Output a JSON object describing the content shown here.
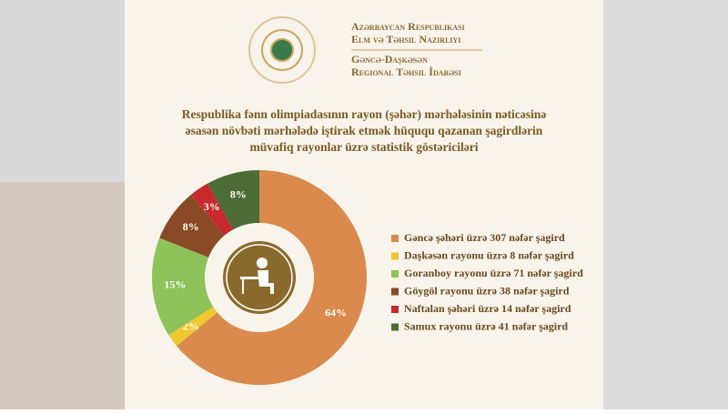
{
  "header": {
    "ministry_line1": "Azərbaycan Respublikası",
    "ministry_line2": "Elm və Təhsil Nazirliyi",
    "office_line1": "Gəncə-Daşkəsən",
    "office_line2": "Regional Təhsil İdarəsi"
  },
  "chart_data": {
    "type": "donut",
    "title": [
      "Respublika fənn olimpiadasının rayon (şəhər) mərhələsinin nəticəsinə",
      "əsasən növbəti mərhələdə iştirak etmək hüququ qazanan şagirdlərin",
      "müvafiq rayonlar üzrə statistik göstəriciləri"
    ],
    "categories": [
      "Gəncə şəhəri üzrə 307 nəfər şagird",
      "Daşkəsən rayonu üzrə 8 nəfər şagird",
      "Goranboy rayonu üzrə 71 nəfər şagird",
      "Göygöl rayonu üzrə 38 nəfər şagird",
      "Naftalan şəhəri üzrə 14 nəfər şagird",
      "Samux rayonu üzrə 41 nəfər şagird"
    ],
    "values": [
      64,
      2,
      15,
      8,
      3,
      8
    ],
    "value_labels": [
      "64%",
      "2%",
      "15%",
      "8%",
      "3%",
      "8%"
    ],
    "colors": [
      "#d98a4c",
      "#efc72f",
      "#8ec25a",
      "#8a4a25",
      "#c62a2d",
      "#4c6d35"
    ],
    "legend": "right"
  }
}
